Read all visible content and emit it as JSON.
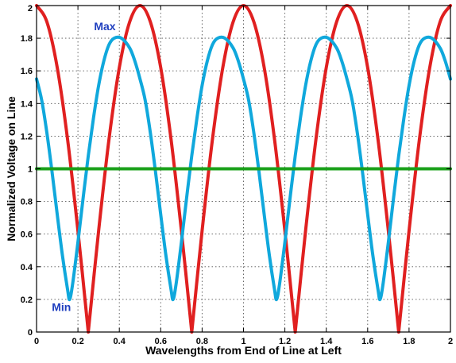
{
  "chart_data": {
    "type": "line",
    "title": "",
    "xlabel": "Wavelengths from End of Line at Left",
    "ylabel": "Normalized Voltage on Line",
    "xlim": [
      0,
      2
    ],
    "ylim": [
      0,
      2
    ],
    "xticks": [
      0,
      0.2,
      0.4,
      0.6,
      0.8,
      1,
      1.2,
      1.4,
      1.6,
      1.8,
      2
    ],
    "xtick_labels": [
      "0",
      "0.2",
      "0.4",
      "0.6",
      "0.8",
      "1",
      "1.2",
      "1.4",
      "1.6",
      "1.8",
      "2"
    ],
    "yticks": [
      0,
      0.2,
      0.4,
      0.6,
      0.8,
      1,
      1.2,
      1.4,
      1.6,
      1.8,
      2
    ],
    "ytick_labels": [
      "0",
      "0.2",
      "0.4",
      "0.6",
      "0.8",
      "1",
      "1.2",
      "1.4",
      "1.6",
      "1.8",
      "2"
    ],
    "grid": true,
    "series": [
      {
        "color": "#e02020",
        "x": [
          0,
          0.05,
          0.1,
          0.15,
          0.2,
          0.25,
          0.3,
          0.35,
          0.4,
          0.45,
          0.5,
          0.55,
          0.6,
          0.65,
          0.7,
          0.75,
          0.8,
          0.85,
          0.9,
          0.95,
          1.0,
          1.05,
          1.1,
          1.15,
          1.2,
          1.25,
          1.3,
          1.35,
          1.4,
          1.45,
          1.5,
          1.55,
          1.6,
          1.65,
          1.7,
          1.75,
          1.8,
          1.85,
          1.9,
          1.95,
          2.0
        ],
        "y": [
          2.0,
          1.9,
          1.62,
          1.18,
          0.62,
          0.0,
          0.62,
          1.18,
          1.62,
          1.9,
          2.0,
          1.9,
          1.62,
          1.18,
          0.62,
          0.0,
          0.62,
          1.18,
          1.62,
          1.9,
          2.0,
          1.9,
          1.62,
          1.18,
          0.62,
          0.0,
          0.62,
          1.18,
          1.62,
          1.9,
          2.0,
          1.9,
          1.62,
          1.18,
          0.62,
          0.0,
          0.62,
          1.18,
          1.62,
          1.9,
          2.0
        ]
      },
      {
        "color": "#10a8dc",
        "x": [
          0,
          0.025,
          0.05,
          0.075,
          0.1,
          0.125,
          0.15,
          0.16,
          0.175,
          0.2,
          0.225,
          0.25,
          0.275,
          0.3,
          0.325,
          0.35,
          0.375,
          0.41,
          0.45,
          0.475,
          0.5,
          0.525,
          0.55,
          0.575,
          0.6,
          0.625,
          0.65,
          0.66,
          0.675,
          0.7,
          0.725,
          0.75,
          0.775,
          0.8,
          0.825,
          0.85,
          0.875,
          0.91,
          0.95,
          0.975,
          1.0,
          1.025,
          1.05,
          1.075,
          1.1,
          1.125,
          1.15,
          1.16,
          1.175,
          1.2,
          1.225,
          1.25,
          1.275,
          1.3,
          1.325,
          1.35,
          1.375,
          1.41,
          1.45,
          1.475,
          1.5,
          1.525,
          1.55,
          1.575,
          1.6,
          1.625,
          1.65,
          1.66,
          1.675,
          1.7,
          1.725,
          1.75,
          1.775,
          1.8,
          1.825,
          1.85,
          1.875,
          1.91,
          1.95,
          1.975,
          2.0
        ],
        "y": [
          1.55,
          1.42,
          1.22,
          0.98,
          0.72,
          0.47,
          0.26,
          0.2,
          0.3,
          0.55,
          0.82,
          1.08,
          1.31,
          1.51,
          1.66,
          1.76,
          1.8,
          1.8,
          1.74,
          1.66,
          1.55,
          1.42,
          1.22,
          0.98,
          0.72,
          0.47,
          0.26,
          0.2,
          0.3,
          0.55,
          0.82,
          1.08,
          1.31,
          1.51,
          1.66,
          1.76,
          1.8,
          1.8,
          1.74,
          1.66,
          1.55,
          1.42,
          1.22,
          0.98,
          0.72,
          0.47,
          0.26,
          0.2,
          0.3,
          0.55,
          0.82,
          1.08,
          1.31,
          1.51,
          1.66,
          1.76,
          1.8,
          1.8,
          1.74,
          1.66,
          1.55,
          1.42,
          1.22,
          0.98,
          0.72,
          0.47,
          0.26,
          0.2,
          0.3,
          0.55,
          0.82,
          1.08,
          1.31,
          1.51,
          1.66,
          1.76,
          1.8,
          1.8,
          1.74,
          1.66,
          1.55
        ]
      },
      {
        "color": "#1aa01a",
        "x": [
          0,
          2
        ],
        "y": [
          1,
          1
        ]
      }
    ],
    "annotations": [
      {
        "text": "Max",
        "x": 0.33,
        "y": 1.85,
        "color": "#1f3fbf"
      },
      {
        "text": "Min",
        "x": 0.12,
        "y": 0.13,
        "color": "#1f3fbf"
      }
    ]
  }
}
